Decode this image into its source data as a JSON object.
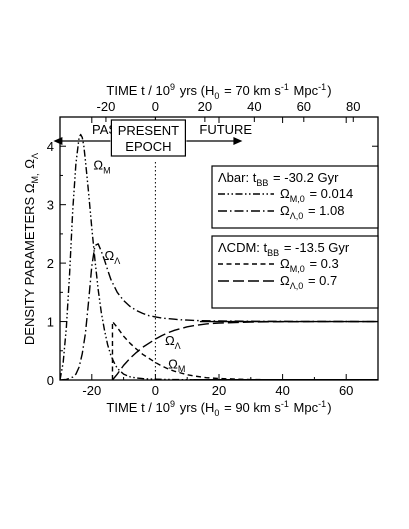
{
  "chart_data": {
    "type": "line",
    "title": "",
    "ylabel": "DENSITY PARAMETERS  Ω_M, Ω_Λ",
    "xlabel_bottom": "TIME  t / 10^9 yrs  (H_0 = 90 km s^-1 Mpc^-1)",
    "xlabel_top": "TIME  t / 10^9 yrs  (H_0 = 70 km s^-1 Mpc^-1)",
    "xlim": [
      -30,
      70
    ],
    "ylim": [
      0,
      4.5
    ],
    "xticks_bottom": [
      -20,
      0,
      20,
      40,
      60
    ],
    "xtick_labels_bottom": [
      "-20",
      "0",
      "20",
      "40",
      "60"
    ],
    "xticks_top": [
      -20,
      0,
      20,
      40,
      60,
      80
    ],
    "xtick_labels_top": [
      "-20",
      "0",
      "20",
      "40",
      "60",
      "80"
    ],
    "yticks": [
      0,
      1,
      2,
      3,
      4
    ],
    "ytick_labels": [
      "0",
      "1",
      "2",
      "3",
      "4"
    ],
    "grid": false,
    "present_line_x": 0,
    "annotations": {
      "past": "PAST",
      "present_line1": "PRESENT",
      "present_line2": "EPOCH",
      "future": "FUTURE",
      "omega_m_upper": "Ω_M",
      "omega_l_upper": "Ω_Λ",
      "omega_l_lower": "Ω_Λ",
      "omega_m_lower": "Ω_M"
    },
    "legends": [
      {
        "title": "Λbar:  t_BB = -30.2 Gyr",
        "entries": [
          {
            "style": "dash-dot-dot",
            "label": "Ω_M,0 = 0.014"
          },
          {
            "style": "dash-dot",
            "label": "Ω_Λ,0 = 1.08"
          }
        ]
      },
      {
        "title": "ΛCDM: t_BB = -13.5 Gyr",
        "entries": [
          {
            "style": "short-dash",
            "label": "Ω_M,0 = 0.3"
          },
          {
            "style": "long-dash",
            "label": "Ω_Λ,0 = 0.7"
          }
        ]
      }
    ],
    "series": [
      {
        "style": "dash-dot-dot",
        "x": [
          -30,
          -29,
          -28,
          -27,
          -26,
          -25,
          -24,
          -23.5,
          -23,
          -22.5,
          -22,
          -21,
          -20,
          -19,
          -18,
          -17,
          -16,
          -15,
          -14,
          -13,
          -12,
          -10,
          -8,
          -6,
          -4,
          -2,
          0,
          2,
          4,
          8,
          12,
          16,
          20,
          30,
          40,
          50,
          60,
          70
        ],
        "y": [
          0,
          0.3,
          0.9,
          1.8,
          2.9,
          3.7,
          4.15,
          4.2,
          4.15,
          4.0,
          3.75,
          3.2,
          2.6,
          2.05,
          1.55,
          1.15,
          0.85,
          0.6,
          0.42,
          0.3,
          0.2,
          0.1,
          0.055,
          0.035,
          0.025,
          0.018,
          0.014,
          0.011,
          0.009,
          0.006,
          0.004,
          0.003,
          0.002,
          0.001,
          0.0006,
          0.0004,
          0.0003,
          0.0002
        ]
      },
      {
        "style": "dash-dot",
        "x": [
          -30,
          -28,
          -26,
          -25,
          -24,
          -23,
          -22,
          -21,
          -20,
          -19,
          -18,
          -17,
          -16,
          -15,
          -14,
          -12,
          -10,
          -8,
          -6,
          -4,
          -2,
          0,
          2,
          4,
          6,
          8,
          10,
          14,
          20,
          30,
          40,
          50,
          60,
          70
        ],
        "y": [
          0,
          0.01,
          0.05,
          0.1,
          0.22,
          0.45,
          0.8,
          1.35,
          1.95,
          2.3,
          2.33,
          2.2,
          2.05,
          1.88,
          1.72,
          1.5,
          1.36,
          1.26,
          1.19,
          1.14,
          1.1,
          1.08,
          1.06,
          1.05,
          1.04,
          1.03,
          1.025,
          1.015,
          1.01,
          1.005,
          1.003,
          1.002,
          1.001,
          1.0
        ]
      },
      {
        "style": "short-dash",
        "x": [
          -13.5,
          -13.5,
          -12,
          -10,
          -8,
          -6,
          -4,
          -2,
          0,
          2,
          4,
          6,
          8,
          10,
          12,
          16,
          20,
          30,
          40,
          50,
          60,
          70
        ],
        "y": [
          0,
          1.0,
          0.9,
          0.75,
          0.63,
          0.53,
          0.44,
          0.37,
          0.3,
          0.24,
          0.19,
          0.15,
          0.12,
          0.09,
          0.07,
          0.04,
          0.025,
          0.008,
          0.003,
          0.001,
          0.0004,
          0.0001
        ]
      },
      {
        "style": "long-dash",
        "x": [
          -13.5,
          -12,
          -10,
          -8,
          -6,
          -4,
          -2,
          0,
          2,
          4,
          6,
          8,
          10,
          12,
          16,
          20,
          30,
          40,
          50,
          60,
          70
        ],
        "y": [
          0,
          0.1,
          0.25,
          0.37,
          0.47,
          0.56,
          0.63,
          0.7,
          0.76,
          0.81,
          0.85,
          0.88,
          0.91,
          0.93,
          0.96,
          0.975,
          0.992,
          0.997,
          0.999,
          0.9996,
          0.9999
        ]
      }
    ]
  }
}
